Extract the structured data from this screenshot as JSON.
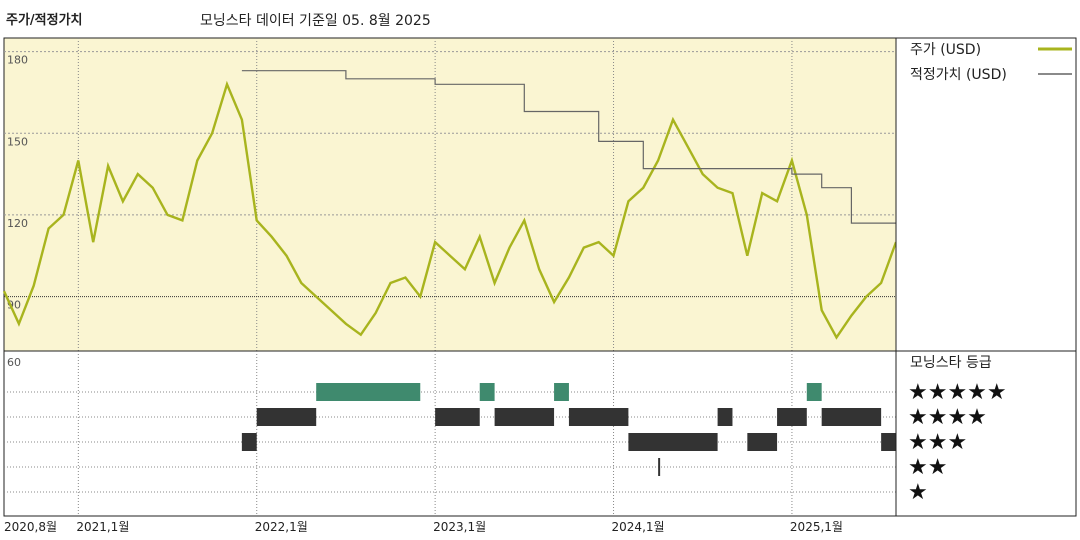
{
  "header": {
    "left_title": "주가/적정가치",
    "center_title": "모닝스타 데이터 기준일 05. 8월 2025"
  },
  "colors": {
    "price": "#a8b41e",
    "fair": "#666666",
    "plot_bg": "#faf5d2",
    "rating_bar": "#333333",
    "rating_bar_top": "#3f8a6e"
  },
  "chart_data": [
    {
      "type": "line",
      "xlim": [
        "2020-08",
        "2025-08"
      ],
      "ylim": [
        70,
        185
      ],
      "yticks": [
        90,
        120,
        150,
        180
      ],
      "xticks": [
        "2020,8월",
        "2021,1월",
        "2022,1월",
        "2023,1월",
        "2024,1월",
        "2025,1월"
      ],
      "series": [
        {
          "name": "주가 (USD)",
          "x": [
            "2020-08",
            "2020-09",
            "2020-10",
            "2020-11",
            "2020-12",
            "2021-01",
            "2021-02",
            "2021-03",
            "2021-04",
            "2021-05",
            "2021-06",
            "2021-07",
            "2021-08",
            "2021-09",
            "2021-10",
            "2021-11",
            "2021-12",
            "2022-01",
            "2022-02",
            "2022-03",
            "2022-04",
            "2022-05",
            "2022-06",
            "2022-07",
            "2022-08",
            "2022-09",
            "2022-10",
            "2022-11",
            "2022-12",
            "2023-01",
            "2023-02",
            "2023-03",
            "2023-04",
            "2023-05",
            "2023-06",
            "2023-07",
            "2023-08",
            "2023-09",
            "2023-10",
            "2023-11",
            "2023-12",
            "2024-01",
            "2024-02",
            "2024-03",
            "2024-04",
            "2024-05",
            "2024-06",
            "2024-07",
            "2024-08",
            "2024-09",
            "2024-10",
            "2024-11",
            "2024-12",
            "2025-01",
            "2025-02",
            "2025-03",
            "2025-04",
            "2025-05",
            "2025-06",
            "2025-07",
            "2025-08"
          ],
          "values": [
            92,
            80,
            94,
            115,
            120,
            140,
            110,
            138,
            125,
            135,
            130,
            120,
            118,
            140,
            150,
            168,
            155,
            118,
            112,
            105,
            95,
            90,
            85,
            80,
            76,
            84,
            95,
            97,
            90,
            110,
            105,
            100,
            112,
            95,
            108,
            118,
            100,
            88,
            97,
            108,
            110,
            105,
            125,
            130,
            140,
            155,
            145,
            135,
            130,
            128,
            105,
            128,
            125,
            140,
            120,
            85,
            75,
            83,
            90,
            95,
            110
          ]
        },
        {
          "name": "적정가치 (USD)",
          "x": [
            "2021-12",
            "2022-07",
            "2022-07",
            "2023-01",
            "2023-01",
            "2023-07",
            "2023-07",
            "2023-12",
            "2023-12",
            "2024-03",
            "2024-03",
            "2025-01",
            "2025-01",
            "2025-03",
            "2025-03",
            "2025-05",
            "2025-05",
            "2025-08"
          ],
          "values": [
            173,
            173,
            170,
            170,
            168,
            168,
            158,
            158,
            147,
            147,
            137,
            137,
            135,
            135,
            130,
            130,
            117,
            117
          ]
        }
      ]
    },
    {
      "type": "bar",
      "title": "모닝스타 등급",
      "ratings": [
        {
          "stars": "★★★★★",
          "periods": [
            [
              "2022-05",
              "2022-12"
            ],
            [
              "2023-04",
              "2023-05"
            ],
            [
              "2023-09",
              "2023-10"
            ],
            [
              "2025-02",
              "2025-03"
            ]
          ]
        },
        {
          "stars": "★★★★",
          "periods": [
            [
              "2022-01",
              "2022-05"
            ],
            [
              "2023-01",
              "2023-04"
            ],
            [
              "2023-05",
              "2023-09"
            ],
            [
              "2023-10",
              "2024-02"
            ],
            [
              "2024-08",
              "2024-09"
            ],
            [
              "2024-12",
              "2025-02"
            ],
            [
              "2025-03",
              "2025-07"
            ]
          ]
        },
        {
          "stars": "★★★",
          "periods": [
            [
              "2021-12",
              "2022-01"
            ],
            [
              "2024-02",
              "2024-05"
            ],
            [
              "2024-05",
              "2024-08"
            ],
            [
              "2024-10",
              "2024-12"
            ],
            [
              "2025-07",
              "2025-08"
            ]
          ]
        },
        {
          "stars": "★★",
          "periods": [
            [
              "2024-04",
              "2024-04"
            ]
          ]
        },
        {
          "stars": "★",
          "periods": []
        }
      ]
    }
  ]
}
